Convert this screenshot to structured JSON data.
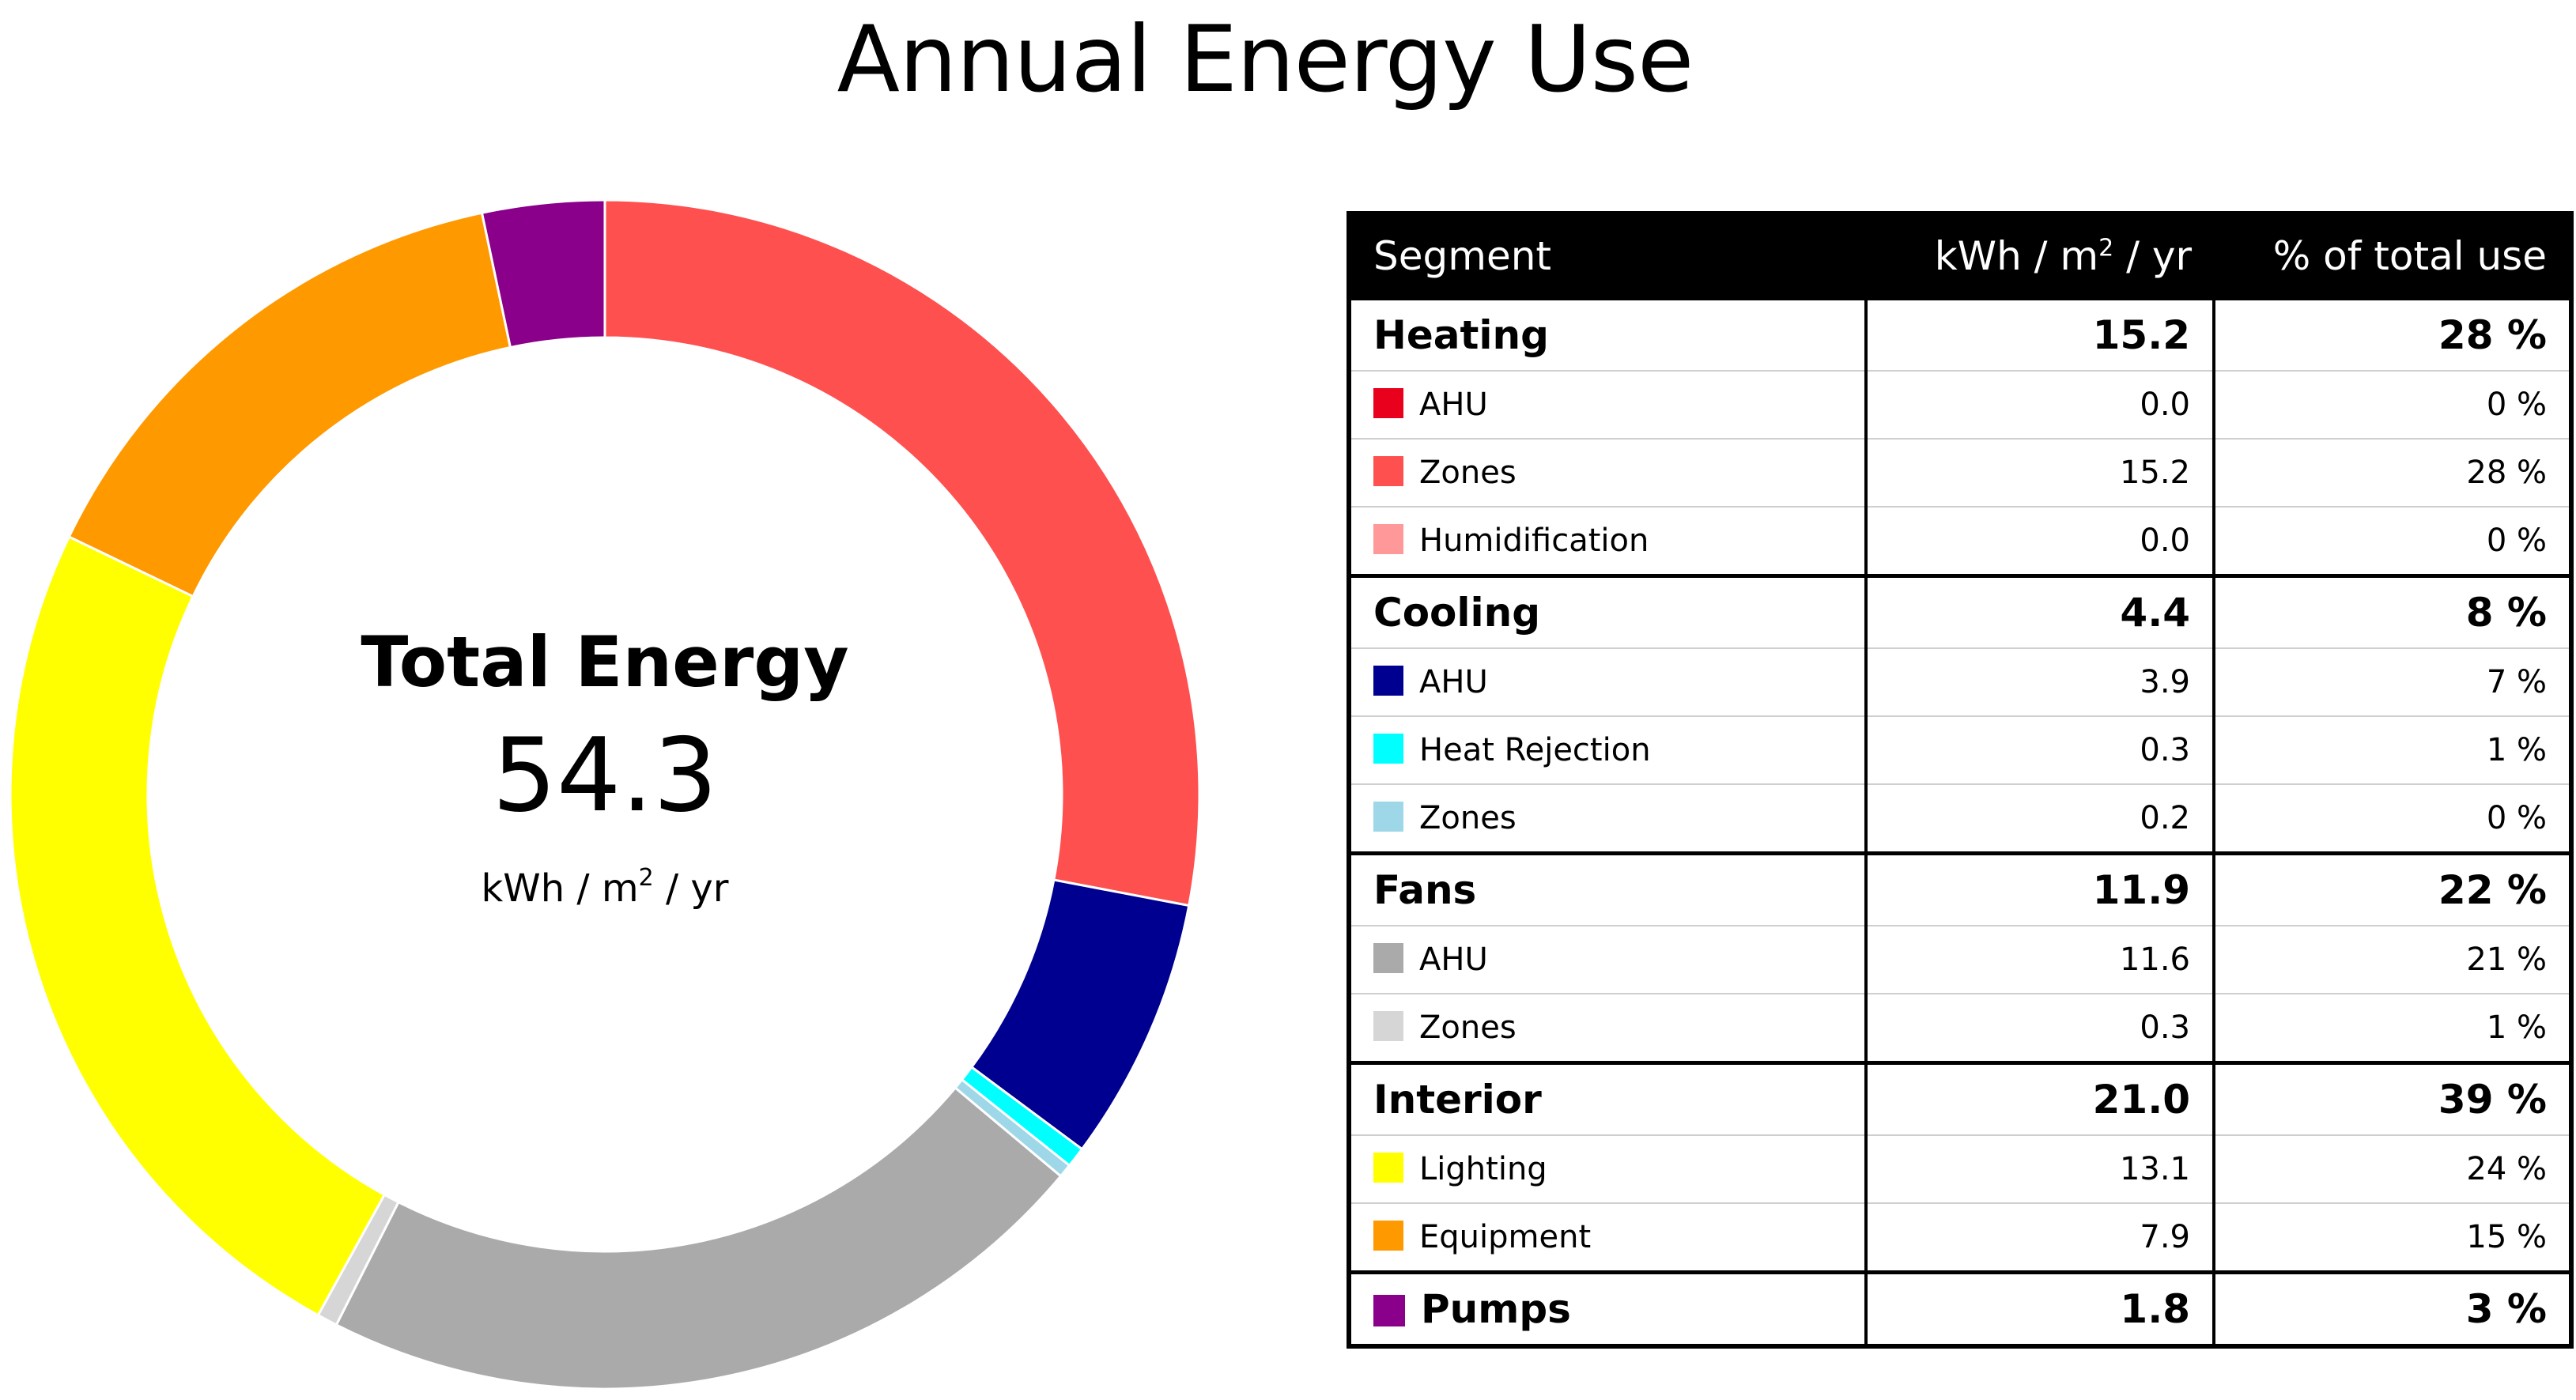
{
  "title": "Annual Energy Use",
  "center": {
    "heading": "Total Energy",
    "value": "54.3",
    "unit": "kWh / m",
    "unit_sup": "2",
    "unit_suffix": " / yr"
  },
  "table": {
    "headers": {
      "segment": "Segment",
      "kwh_prefix": "kWh / m",
      "kwh_sup": "2",
      "kwh_suffix": " / yr",
      "pct": "% of total use"
    }
  },
  "chart_data": {
    "type": "pie",
    "style": "donut",
    "title": "Annual Energy Use",
    "total": 54.3,
    "unit": "kWh / m² / yr",
    "groups": [
      {
        "name": "Heating",
        "value": "15.2",
        "pct": "28 %",
        "items": [
          {
            "name": "AHU",
            "value": "0.0",
            "pct": "0 %",
            "color": "#E8001C"
          },
          {
            "name": "Zones",
            "value": "15.2",
            "pct": "28 %",
            "color": "#FF5050"
          },
          {
            "name": "Humidification",
            "value": "0.0",
            "pct": "0 %",
            "color": "#FF9999"
          }
        ]
      },
      {
        "name": "Cooling",
        "value": "4.4",
        "pct": "8 %",
        "items": [
          {
            "name": "AHU",
            "value": "3.9",
            "pct": "7 %",
            "color": "#000090"
          },
          {
            "name": "Heat Rejection",
            "value": "0.3",
            "pct": "1 %",
            "color": "#00FFFF"
          },
          {
            "name": "Zones",
            "value": "0.2",
            "pct": "0 %",
            "color": "#9ED7E8"
          }
        ]
      },
      {
        "name": "Fans",
        "value": "11.9",
        "pct": "22 %",
        "items": [
          {
            "name": "AHU",
            "value": "11.6",
            "pct": "21 %",
            "color": "#AAAAAA"
          },
          {
            "name": "Zones",
            "value": "0.3",
            "pct": "1 %",
            "color": "#D6D6D6"
          }
        ]
      },
      {
        "name": "Interior",
        "value": "21.0",
        "pct": "39 %",
        "items": [
          {
            "name": "Lighting",
            "value": "13.1",
            "pct": "24 %",
            "color": "#FFFF00"
          },
          {
            "name": "Equipment",
            "value": "7.9",
            "pct": "15 %",
            "color": "#FF9900"
          }
        ]
      },
      {
        "name": "Pumps",
        "value": "1.8",
        "pct": "3 %",
        "color": "#8B008B",
        "items": []
      }
    ]
  }
}
